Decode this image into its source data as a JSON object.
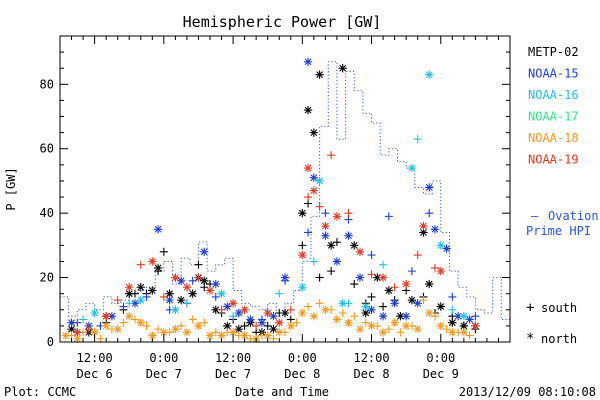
{
  "chart_data": {
    "type": "scatter",
    "title": "Hemispheric Power [GW]",
    "xlabel": "Date and Time",
    "ylabel": "P [GW]",
    "ylim": [
      0,
      95
    ],
    "xlim": [
      0,
      78
    ],
    "yticks": [
      0,
      20,
      40,
      60,
      80
    ],
    "xticks": [
      {
        "x": 6,
        "time": "12:00",
        "date": "Dec 6"
      },
      {
        "x": 18,
        "time": "0:00",
        "date": "Dec 7"
      },
      {
        "x": 30,
        "time": "12:00",
        "date": "Dec 7"
      },
      {
        "x": 42,
        "time": "0:00",
        "date": "Dec 8"
      },
      {
        "x": 54,
        "time": "12:00",
        "date": "Dec 8"
      },
      {
        "x": 66,
        "time": "0:00",
        "date": "Dec 9"
      }
    ],
    "grid": false,
    "legend_position": "right",
    "series": [
      {
        "name": "METP-02",
        "color": "#000000",
        "south": [
          [
            3,
            3
          ],
          [
            8,
            6
          ],
          [
            11,
            10
          ],
          [
            13,
            15
          ],
          [
            15,
            15
          ],
          [
            17,
            22
          ],
          [
            18,
            28
          ],
          [
            20,
            20
          ],
          [
            22,
            12
          ],
          [
            24,
            24
          ],
          [
            25,
            17
          ],
          [
            26,
            18
          ],
          [
            28,
            9
          ],
          [
            30,
            7
          ],
          [
            32,
            5
          ],
          [
            34,
            3
          ],
          [
            36,
            5
          ],
          [
            38,
            9
          ],
          [
            40,
            7
          ],
          [
            42,
            30
          ],
          [
            43,
            43
          ],
          [
            45,
            20
          ],
          [
            47,
            22
          ],
          [
            48,
            31
          ],
          [
            51,
            18
          ],
          [
            53,
            12
          ],
          [
            54,
            14
          ],
          [
            56,
            11
          ],
          [
            58,
            13
          ],
          [
            60,
            16
          ],
          [
            63,
            14
          ],
          [
            65,
            9
          ],
          [
            68,
            8
          ],
          [
            70,
            5
          ],
          [
            72,
            4
          ]
        ],
        "north": [
          [
            2,
            4
          ],
          [
            5,
            3
          ],
          [
            8,
            8
          ],
          [
            12,
            15
          ],
          [
            14,
            17
          ],
          [
            16,
            16
          ],
          [
            17,
            23
          ],
          [
            19,
            15
          ],
          [
            21,
            13
          ],
          [
            23,
            15
          ],
          [
            24,
            20
          ],
          [
            25,
            19
          ],
          [
            27,
            10
          ],
          [
            29,
            5
          ],
          [
            31,
            4
          ],
          [
            33,
            6
          ],
          [
            35,
            3
          ],
          [
            37,
            4
          ],
          [
            39,
            9
          ],
          [
            42,
            40
          ],
          [
            43,
            72
          ],
          [
            44,
            65
          ],
          [
            45,
            83
          ],
          [
            47,
            30
          ],
          [
            49,
            85
          ],
          [
            51,
            30
          ],
          [
            53,
            9
          ],
          [
            55,
            20
          ],
          [
            57,
            16
          ],
          [
            59,
            8
          ],
          [
            61,
            13
          ],
          [
            63,
            34
          ],
          [
            64,
            18
          ],
          [
            66,
            11
          ],
          [
            68,
            6
          ],
          [
            70,
            5
          ],
          [
            72,
            5
          ]
        ]
      },
      {
        "name": "NOAA-15",
        "color": "#1e3ed2",
        "south": [
          [
            3,
            6
          ],
          [
            7,
            5
          ],
          [
            11,
            11
          ],
          [
            15,
            14
          ],
          [
            19,
            10
          ],
          [
            23,
            19
          ],
          [
            27,
            14
          ],
          [
            31,
            9
          ],
          [
            35,
            7
          ],
          [
            39,
            19
          ],
          [
            43,
            34
          ],
          [
            46,
            40
          ],
          [
            50,
            38
          ],
          [
            54,
            27
          ],
          [
            57,
            39
          ],
          [
            61,
            22
          ],
          [
            64,
            40
          ],
          [
            68,
            14
          ],
          [
            72,
            8
          ]
        ],
        "north": [
          [
            2,
            6
          ],
          [
            5,
            5
          ],
          [
            9,
            8
          ],
          [
            13,
            12
          ],
          [
            17,
            35
          ],
          [
            19,
            13
          ],
          [
            21,
            19
          ],
          [
            25,
            28
          ],
          [
            27,
            18
          ],
          [
            29,
            11
          ],
          [
            31,
            9
          ],
          [
            33,
            7
          ],
          [
            35,
            6
          ],
          [
            37,
            8
          ],
          [
            39,
            20
          ],
          [
            43,
            87
          ],
          [
            44,
            51
          ],
          [
            46,
            33
          ],
          [
            48,
            25
          ],
          [
            50,
            33
          ],
          [
            52,
            20
          ],
          [
            54,
            10
          ],
          [
            56,
            8
          ],
          [
            58,
            12
          ],
          [
            60,
            8
          ],
          [
            62,
            12
          ],
          [
            64,
            48
          ],
          [
            65,
            35
          ],
          [
            67,
            29
          ],
          [
            69,
            8
          ],
          [
            71,
            7
          ]
        ]
      },
      {
        "name": "NOAA-16",
        "color": "#21c0e4",
        "south": [
          [
            4,
            7
          ],
          [
            12,
            12
          ],
          [
            22,
            12
          ],
          [
            30,
            8
          ],
          [
            38,
            15
          ],
          [
            44,
            25
          ],
          [
            50,
            12
          ],
          [
            56,
            24
          ],
          [
            62,
            63
          ],
          [
            68,
            10
          ]
        ],
        "north": [
          [
            6,
            9
          ],
          [
            14,
            13
          ],
          [
            20,
            10
          ],
          [
            28,
            15
          ],
          [
            36,
            9
          ],
          [
            42,
            17
          ],
          [
            45,
            50
          ],
          [
            49,
            12
          ],
          [
            53,
            11
          ],
          [
            61,
            54
          ],
          [
            64,
            83
          ],
          [
            66,
            30
          ],
          [
            70,
            8
          ]
        ]
      },
      {
        "name": "NOAA-17",
        "color": "#2fe88c",
        "south": [],
        "north": []
      },
      {
        "name": "NOAA-18",
        "color": "#f39a1f",
        "south": [
          [
            2,
            2
          ],
          [
            4,
            3
          ],
          [
            7,
            1
          ],
          [
            9,
            4
          ],
          [
            11,
            6
          ],
          [
            13,
            7
          ],
          [
            15,
            5
          ],
          [
            17,
            4
          ],
          [
            19,
            3
          ],
          [
            21,
            5
          ],
          [
            23,
            7
          ],
          [
            25,
            6
          ],
          [
            27,
            3
          ],
          [
            29,
            3
          ],
          [
            31,
            2
          ],
          [
            33,
            1
          ],
          [
            35,
            2
          ],
          [
            37,
            1
          ],
          [
            39,
            3
          ],
          [
            41,
            6
          ],
          [
            43,
            11
          ],
          [
            45,
            12
          ],
          [
            47,
            10
          ],
          [
            49,
            9
          ],
          [
            51,
            8
          ],
          [
            53,
            6
          ],
          [
            55,
            5
          ],
          [
            57,
            4
          ],
          [
            59,
            3
          ],
          [
            61,
            5
          ],
          [
            63,
            13
          ],
          [
            65,
            8
          ],
          [
            67,
            4
          ],
          [
            69,
            3
          ],
          [
            71,
            2
          ]
        ],
        "north": [
          [
            1,
            2
          ],
          [
            3,
            1
          ],
          [
            6,
            3
          ],
          [
            8,
            5
          ],
          [
            10,
            4
          ],
          [
            12,
            8
          ],
          [
            14,
            6
          ],
          [
            16,
            2
          ],
          [
            18,
            3
          ],
          [
            20,
            4
          ],
          [
            22,
            3
          ],
          [
            24,
            5
          ],
          [
            26,
            2
          ],
          [
            28,
            2
          ],
          [
            30,
            3
          ],
          [
            32,
            2
          ],
          [
            34,
            1
          ],
          [
            36,
            2
          ],
          [
            38,
            3
          ],
          [
            40,
            5
          ],
          [
            42,
            9
          ],
          [
            44,
            8
          ],
          [
            46,
            10
          ],
          [
            48,
            7
          ],
          [
            50,
            6
          ],
          [
            52,
            4
          ],
          [
            54,
            5
          ],
          [
            56,
            3
          ],
          [
            58,
            6
          ],
          [
            60,
            5
          ],
          [
            62,
            4
          ],
          [
            64,
            9
          ],
          [
            66,
            5
          ],
          [
            68,
            3
          ],
          [
            70,
            3
          ]
        ]
      },
      {
        "name": "NOAA-19",
        "color": "#e03a22",
        "south": [
          [
            5,
            4
          ],
          [
            10,
            13
          ],
          [
            14,
            24
          ],
          [
            18,
            14
          ],
          [
            24,
            20
          ],
          [
            28,
            10
          ],
          [
            34,
            5
          ],
          [
            40,
            10
          ],
          [
            43,
            45
          ],
          [
            45,
            42
          ],
          [
            47,
            58
          ],
          [
            50,
            40
          ],
          [
            54,
            21
          ],
          [
            58,
            17
          ],
          [
            62,
            27
          ],
          [
            65,
            23
          ]
        ],
        "north": [
          [
            3,
            3
          ],
          [
            8,
            8
          ],
          [
            12,
            17
          ],
          [
            16,
            25
          ],
          [
            20,
            20
          ],
          [
            22,
            17
          ],
          [
            26,
            16
          ],
          [
            30,
            12
          ],
          [
            32,
            10
          ],
          [
            36,
            9
          ],
          [
            38,
            6
          ],
          [
            42,
            27
          ],
          [
            43,
            54
          ],
          [
            44,
            47
          ],
          [
            46,
            36
          ],
          [
            48,
            39
          ],
          [
            52,
            28
          ],
          [
            56,
            20
          ],
          [
            60,
            18
          ],
          [
            63,
            36
          ],
          [
            66,
            22
          ],
          [
            72,
            5
          ]
        ]
      }
    ],
    "ovation": {
      "label_line1": "Ovation",
      "label_line2": "Prime HPI",
      "marker": "—",
      "color": "#2a58d0",
      "x": [
        0,
        1.5,
        3,
        4.5,
        6,
        7.5,
        9,
        10.5,
        12,
        13.5,
        15,
        16.5,
        18,
        19.5,
        21,
        22.5,
        24,
        25.5,
        27,
        28.5,
        30,
        31.5,
        33,
        34.5,
        36,
        37.5,
        39,
        40.5,
        42,
        43.5,
        45,
        46.5,
        48,
        49.5,
        51,
        52.5,
        54,
        55.5,
        57,
        58.5,
        60,
        61.5,
        63,
        64.5,
        66,
        67.5,
        69,
        70.5,
        72,
        73.5,
        75,
        76.5
      ],
      "y": [
        14,
        8,
        10,
        12,
        10,
        14,
        12,
        13,
        15,
        16,
        17,
        22,
        25,
        18,
        26,
        24,
        31,
        22,
        24,
        26,
        16,
        12,
        11,
        10,
        12,
        9,
        12,
        16,
        25,
        39,
        67,
        87,
        63,
        84,
        78,
        71,
        68,
        58,
        60,
        56,
        54,
        48,
        46,
        50,
        34,
        22,
        17,
        14,
        10,
        9,
        20,
        7
      ]
    },
    "legend_symbols": [
      {
        "symbol": "+",
        "label": "south"
      },
      {
        "symbol": "*",
        "label": "north"
      }
    ],
    "footer": {
      "left": "Plot: CCMC",
      "right": "2013/12/09 08:10:08"
    }
  }
}
